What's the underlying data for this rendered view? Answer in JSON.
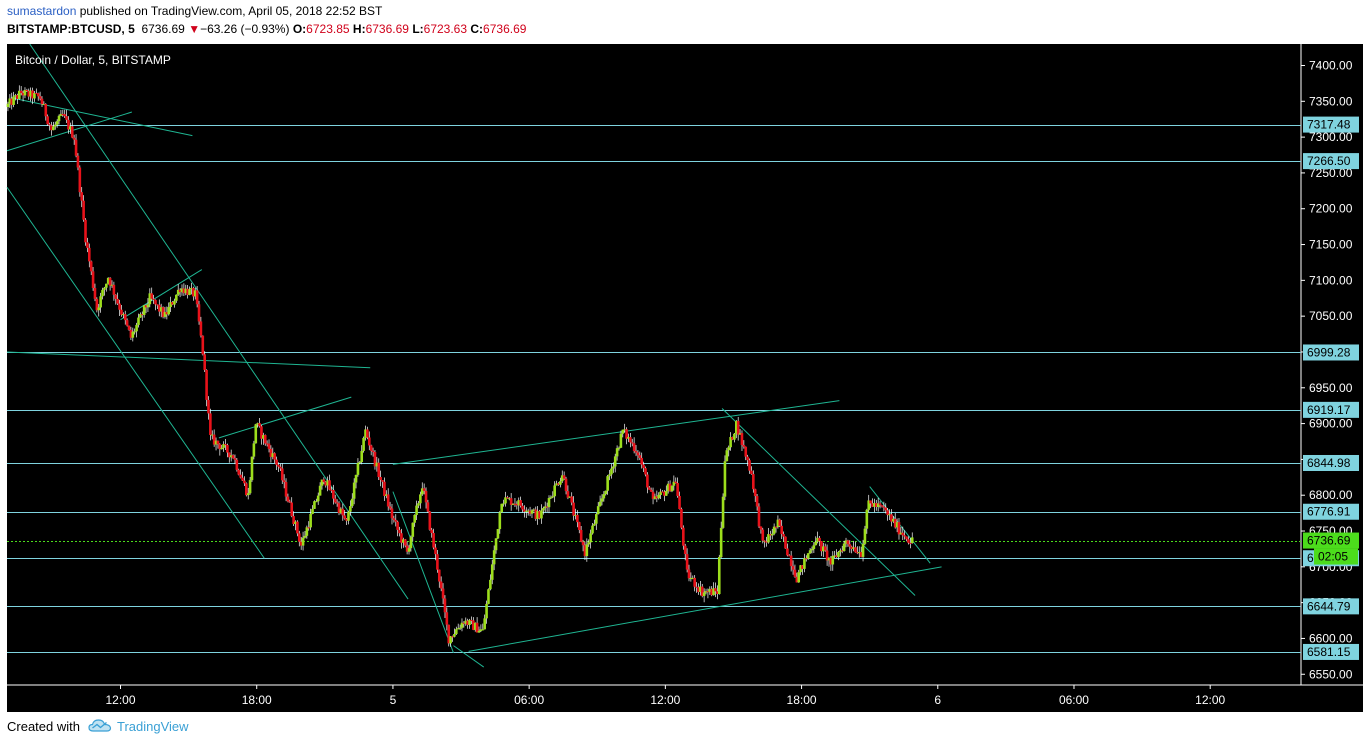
{
  "header": {
    "author": "sumastardon",
    "published": " published on TradingView.com, April 05, 2018 22:52 BST",
    "symbol": "BITSTAMP:BTCUSD, 5",
    "last": "6736.69",
    "down_arrow": "▼",
    "change": "−63.26 (−0.93%)",
    "o_label": "O:",
    "o_val": "6723.85",
    "h_label": "H:",
    "h_val": "6736.69",
    "l_label": "L:",
    "l_val": "6723.63",
    "c_label": "C:",
    "c_val": "6736.69"
  },
  "footer": {
    "created_with": "Created with",
    "brand": "TradingView",
    "logo_icon": "tradingview-cloud-logo"
  },
  "colors": {
    "background": "#000000",
    "up_candle": "#9dde1c",
    "down_candle": "#e8121a",
    "wick": "#ffffff",
    "level_line": "#7fd3df",
    "trend_line": "#1fb592",
    "current_price_line": "#4cdc1c",
    "price_label_bg": "#7fd3df",
    "current_label_bg": "#4cdc1c"
  },
  "chart_data": {
    "type": "candlestick",
    "title": "Bitcoin / Dollar, 5, BITSTAMP",
    "ylim": [
      6535,
      7430
    ],
    "y_ticks": [
      7400,
      7350,
      7300,
      7250,
      7200,
      7150,
      7100,
      7050,
      7000,
      6950,
      6900,
      6850,
      6800,
      6750,
      6700,
      6650,
      6600,
      6550
    ],
    "y_tick_labels": [
      "7400.00",
      "7350.00",
      "7300.00",
      "7250.00",
      "7200.00",
      "7150.00",
      "7100.00",
      "7050.00",
      "7000.00",
      "6950.00",
      "6900.00",
      "6850.00",
      "6800.00",
      "6750.00",
      "6700.00",
      "6650.00",
      "6600.00",
      "6550.00"
    ],
    "x_range": [
      "2018-04-04 07:00",
      "2018-04-06 16:00"
    ],
    "x_ticks": [
      {
        "t": "2018-04-04 12:00",
        "label": "12:00"
      },
      {
        "t": "2018-04-04 18:00",
        "label": "18:00"
      },
      {
        "t": "2018-04-05 00:00",
        "label": "5"
      },
      {
        "t": "2018-04-05 06:00",
        "label": "06:00"
      },
      {
        "t": "2018-04-05 12:00",
        "label": "12:00"
      },
      {
        "t": "2018-04-05 18:00",
        "label": "18:00"
      },
      {
        "t": "2018-04-06 00:00",
        "label": "6"
      },
      {
        "t": "2018-04-06 06:00",
        "label": "06:00"
      },
      {
        "t": "2018-04-06 12:00",
        "label": "12:00"
      }
    ],
    "price_levels": [
      {
        "value": 7317.48,
        "label": "7317.48"
      },
      {
        "value": 7266.5,
        "label": "7266.50"
      },
      {
        "value": 6999.28,
        "label": "6999.28"
      },
      {
        "value": 6919.17,
        "label": "6919.17"
      },
      {
        "value": 6844.98,
        "label": "6844.98"
      },
      {
        "value": 6776.91,
        "label": "6776.91"
      },
      {
        "value": 6712.0,
        "label": "6"
      },
      {
        "value": 6644.79,
        "label": "6644.79"
      },
      {
        "value": 6581.15,
        "label": "6581.15"
      }
    ],
    "current_price": {
      "value": 6736.69,
      "label": "6736.69",
      "countdown": "02:05"
    },
    "trend_lines": [
      {
        "t1": "2018-04-04 07:10",
        "p1": 7355,
        "t2": "2018-04-04 15:10",
        "p2": 7302
      },
      {
        "t1": "2018-04-04 07:00",
        "p1": 7281,
        "t2": "2018-04-04 12:30",
        "p2": 7335
      },
      {
        "t1": "2018-04-04 08:00",
        "p1": 7430,
        "t2": "2018-04-05 00:40",
        "p2": 6655
      },
      {
        "t1": "2018-04-04 07:00",
        "p1": 7230,
        "t2": "2018-04-04 18:20",
        "p2": 6712
      },
      {
        "t1": "2018-04-04 07:00",
        "p1": 7000,
        "t2": "2018-04-04 23:00",
        "p2": 6978
      },
      {
        "t1": "2018-04-04 12:00",
        "p1": 7045,
        "t2": "2018-04-04 15:35",
        "p2": 7115
      },
      {
        "t1": "2018-04-04 16:20",
        "p1": 6880,
        "t2": "2018-04-04 22:10",
        "p2": 6937
      },
      {
        "t1": "2018-04-05 00:00",
        "p1": 6805,
        "t2": "2018-04-05 02:40",
        "p2": 6580
      },
      {
        "t1": "2018-04-05 02:40",
        "p1": 6590,
        "t2": "2018-04-05 04:00",
        "p2": 6560
      },
      {
        "t1": "2018-04-05 03:20",
        "p1": 6582,
        "t2": "2018-04-06 00:10",
        "p2": 6700
      },
      {
        "t1": "2018-04-05 00:00",
        "p1": 6843,
        "t2": "2018-04-05 19:40",
        "p2": 6932
      },
      {
        "t1": "2018-04-05 14:30",
        "p1": 6921,
        "t2": "2018-04-05 23:00",
        "p2": 6660
      },
      {
        "t1": "2018-04-05 21:00",
        "p1": 6812,
        "t2": "2018-04-05 23:40",
        "p2": 6705
      }
    ],
    "price_path": [
      {
        "t": "2018-04-04 07:00",
        "p": 7342
      },
      {
        "t": "2018-04-04 07:40",
        "p": 7362
      },
      {
        "t": "2018-04-04 08:30",
        "p": 7355
      },
      {
        "t": "2018-04-04 09:00",
        "p": 7310
      },
      {
        "t": "2018-04-04 09:30",
        "p": 7330
      },
      {
        "t": "2018-04-04 10:00",
        "p": 7300
      },
      {
        "t": "2018-04-04 10:30",
        "p": 7160
      },
      {
        "t": "2018-04-04 11:00",
        "p": 7060
      },
      {
        "t": "2018-04-04 11:30",
        "p": 7105
      },
      {
        "t": "2018-04-04 12:30",
        "p": 7020
      },
      {
        "t": "2018-04-04 13:20",
        "p": 7075
      },
      {
        "t": "2018-04-04 14:00",
        "p": 7050
      },
      {
        "t": "2018-04-04 14:40",
        "p": 7090
      },
      {
        "t": "2018-04-04 15:20",
        "p": 7080
      },
      {
        "t": "2018-04-04 15:40",
        "p": 7000
      },
      {
        "t": "2018-04-04 16:00",
        "p": 6880
      },
      {
        "t": "2018-04-04 17:00",
        "p": 6855
      },
      {
        "t": "2018-04-04 17:40",
        "p": 6800
      },
      {
        "t": "2018-04-04 18:00",
        "p": 6900
      },
      {
        "t": "2018-04-04 19:00",
        "p": 6840
      },
      {
        "t": "2018-04-04 20:00",
        "p": 6730
      },
      {
        "t": "2018-04-04 21:00",
        "p": 6825
      },
      {
        "t": "2018-04-04 22:00",
        "p": 6760
      },
      {
        "t": "2018-04-04 22:50",
        "p": 6890
      },
      {
        "t": "2018-04-05 00:00",
        "p": 6770
      },
      {
        "t": "2018-04-05 00:40",
        "p": 6720
      },
      {
        "t": "2018-04-05 01:20",
        "p": 6815
      },
      {
        "t": "2018-04-05 02:00",
        "p": 6700
      },
      {
        "t": "2018-04-05 02:30",
        "p": 6600
      },
      {
        "t": "2018-04-05 03:10",
        "p": 6625
      },
      {
        "t": "2018-04-05 04:00",
        "p": 6610
      },
      {
        "t": "2018-04-05 04:50",
        "p": 6795
      },
      {
        "t": "2018-04-05 05:30",
        "p": 6790
      },
      {
        "t": "2018-04-05 06:30",
        "p": 6770
      },
      {
        "t": "2018-04-05 07:30",
        "p": 6830
      },
      {
        "t": "2018-04-05 08:30",
        "p": 6720
      },
      {
        "t": "2018-04-05 09:30",
        "p": 6820
      },
      {
        "t": "2018-04-05 10:10",
        "p": 6890
      },
      {
        "t": "2018-04-05 10:50",
        "p": 6860
      },
      {
        "t": "2018-04-05 11:30",
        "p": 6790
      },
      {
        "t": "2018-04-05 12:30",
        "p": 6820
      },
      {
        "t": "2018-04-05 13:00",
        "p": 6690
      },
      {
        "t": "2018-04-05 13:40",
        "p": 6665
      },
      {
        "t": "2018-04-05 14:20",
        "p": 6665
      },
      {
        "t": "2018-04-05 14:40",
        "p": 6850
      },
      {
        "t": "2018-04-05 15:10",
        "p": 6900
      },
      {
        "t": "2018-04-05 15:50",
        "p": 6830
      },
      {
        "t": "2018-04-05 16:20",
        "p": 6730
      },
      {
        "t": "2018-04-05 17:00",
        "p": 6760
      },
      {
        "t": "2018-04-05 17:50",
        "p": 6685
      },
      {
        "t": "2018-04-05 18:40",
        "p": 6740
      },
      {
        "t": "2018-04-05 19:20",
        "p": 6705
      },
      {
        "t": "2018-04-05 20:00",
        "p": 6735
      },
      {
        "t": "2018-04-05 20:40",
        "p": 6720
      },
      {
        "t": "2018-04-05 21:00",
        "p": 6790
      },
      {
        "t": "2018-04-05 21:40",
        "p": 6780
      },
      {
        "t": "2018-04-05 22:20",
        "p": 6752
      },
      {
        "t": "2018-04-05 22:50",
        "p": 6736.69
      }
    ]
  }
}
